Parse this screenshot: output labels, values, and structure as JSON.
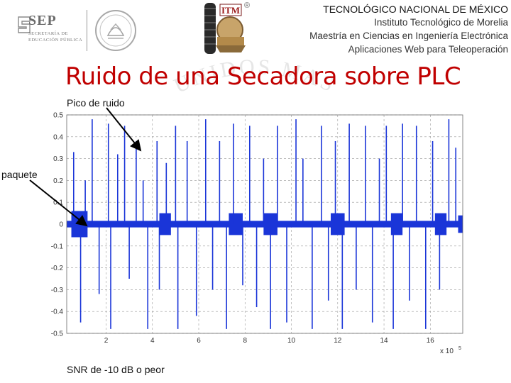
{
  "header": {
    "institution_lines": [
      "TECNOLÓGICO NACIONAL DE MÉXICO",
      "Instituto Tecnológico de Morelia",
      "Maestría en Ciencias en Ingeniería Electrónica",
      "Aplicaciones Web para Teleoperación"
    ],
    "sep_logo": {
      "word": "SEP",
      "sub1": "SECRETARÍA DE",
      "sub2": "EDUCACIÓN PÚBLICA"
    },
    "itm_logo": {
      "text": "ITM",
      "registered": "®"
    },
    "seal_icon": "mexican-seal-icon",
    "watermark_text": "UNIDOS MAS"
  },
  "slide": {
    "title": "Ruido de una Secadora sobre PLC",
    "annotations": {
      "peak": "Pico de ruido",
      "packet": "paquete",
      "snr": "SNR de -10 dB o peor"
    }
  },
  "colors": {
    "title": "#c00000",
    "signal": "#1a35d8",
    "grid": "#999999"
  },
  "chart_data": {
    "type": "line",
    "title": "",
    "xlabel": "",
    "ylabel": "",
    "x_exponent_label": "x 10",
    "x_exponent_power": "5",
    "xlim": [
      0.3,
      17.4
    ],
    "ylim": [
      -0.5,
      0.5
    ],
    "xticks": [
      2,
      4,
      6,
      8,
      10,
      12,
      14,
      16
    ],
    "yticks": [
      0.5,
      0.4,
      0.3,
      0.2,
      0.1,
      0,
      -0.1,
      -0.2,
      -0.3,
      -0.4,
      -0.5
    ],
    "ytick_labels": [
      "0.5",
      "0.4",
      "0.3",
      "0.2",
      "0.1",
      "0",
      "-0.1",
      "-0.2",
      "-0.3",
      "-0.4",
      "-0.5"
    ],
    "grid": true,
    "noise_floor_amplitude": 0.015,
    "series": [
      {
        "x": [
          0.6,
          0.9,
          1.1,
          1.4,
          1.7,
          2.1,
          2.2,
          2.5,
          2.8,
          3.0,
          3.3,
          3.6,
          3.8,
          4.2,
          4.3,
          4.6,
          5.0,
          5.1,
          5.5,
          5.9,
          6.3,
          6.6,
          6.9,
          7.2,
          7.5,
          7.9,
          8.2,
          8.5,
          8.8,
          9.1,
          9.4,
          9.8,
          10.2,
          10.5,
          10.9,
          11.3,
          11.6,
          11.9,
          12.2,
          12.5,
          12.8,
          13.2,
          13.5,
          13.8,
          14.1,
          14.4,
          14.8,
          15.1,
          15.4,
          15.8,
          16.1,
          16.4,
          16.8,
          17.1
        ],
        "y": [
          0.33,
          -0.45,
          0.2,
          0.48,
          -0.32,
          0.46,
          -0.48,
          0.32,
          0.45,
          -0.25,
          0.38,
          0.2,
          -0.48,
          0.38,
          -0.3,
          0.28,
          0.45,
          -0.48,
          0.38,
          -0.42,
          0.48,
          -0.3,
          0.38,
          -0.48,
          0.46,
          -0.28,
          0.45,
          -0.38,
          0.3,
          -0.48,
          0.45,
          -0.45,
          0.48,
          0.3,
          -0.48,
          0.45,
          -0.35,
          0.38,
          -0.48,
          0.46,
          -0.3,
          0.45,
          -0.45,
          0.3,
          0.45,
          -0.48,
          0.46,
          -0.35,
          0.45,
          -0.48,
          0.38,
          -0.3,
          0.48,
          0.35
        ]
      }
    ],
    "packets": [
      {
        "x_start": 0.5,
        "x_end": 1.2,
        "amplitude": 0.06
      },
      {
        "x_start": 4.3,
        "x_end": 4.8,
        "amplitude": 0.05
      },
      {
        "x_start": 7.3,
        "x_end": 7.9,
        "amplitude": 0.05
      },
      {
        "x_start": 8.8,
        "x_end": 9.4,
        "amplitude": 0.05
      },
      {
        "x_start": 11.7,
        "x_end": 12.3,
        "amplitude": 0.05
      },
      {
        "x_start": 14.3,
        "x_end": 14.8,
        "amplitude": 0.05
      },
      {
        "x_start": 16.2,
        "x_end": 16.7,
        "amplitude": 0.05
      },
      {
        "x_start": 17.2,
        "x_end": 17.4,
        "amplitude": 0.04
      }
    ]
  }
}
